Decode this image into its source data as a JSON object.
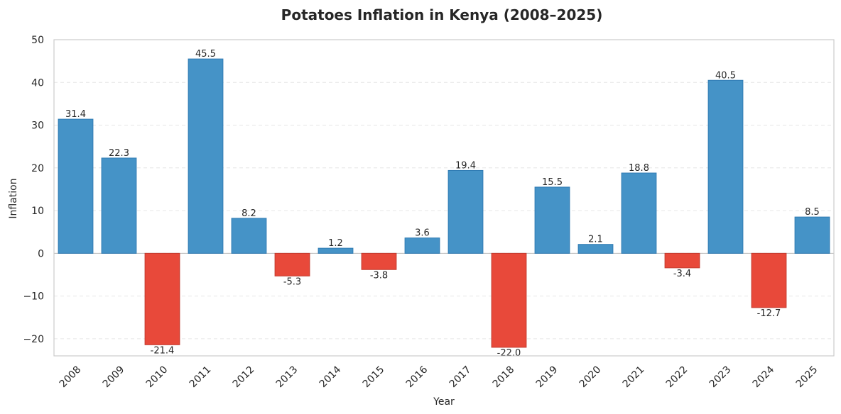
{
  "chart_data": {
    "type": "bar",
    "title": "Potatoes Inflation in Kenya (2008–2025)",
    "xlabel": "Year",
    "ylabel": "Inflation",
    "ylim": [
      -24,
      50
    ],
    "yticks": [
      -20,
      -10,
      0,
      10,
      20,
      30,
      40,
      50
    ],
    "grid": true,
    "legend": "none",
    "colors": {
      "positive": "#4593c7",
      "negative": "#e8493a",
      "positive_edge": "#2f7bb3",
      "negative_edge": "#c23b2e"
    },
    "categories": [
      "2008",
      "2009",
      "2010",
      "2011",
      "2012",
      "2013",
      "2014",
      "2015",
      "2016",
      "2017",
      "2018",
      "2019",
      "2020",
      "2021",
      "2022",
      "2023",
      "2024",
      "2025"
    ],
    "values": [
      31.4,
      22.3,
      -21.4,
      45.5,
      8.2,
      -5.3,
      1.2,
      -3.8,
      3.6,
      19.4,
      -22.0,
      15.5,
      2.1,
      18.8,
      -3.4,
      40.5,
      -12.7,
      8.5
    ],
    "value_labels": [
      "31.4",
      "22.3",
      "-21.4",
      "45.5",
      "8.2",
      "-5.3",
      "1.2",
      "-3.8",
      "3.6",
      "19.4",
      "-22.0",
      "15.5",
      "2.1",
      "18.8",
      "-3.4",
      "40.5",
      "-12.7",
      "8.5"
    ]
  }
}
